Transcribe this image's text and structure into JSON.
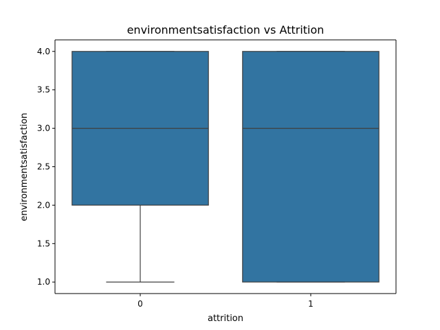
{
  "chart_data": {
    "type": "box",
    "title": "environmentsatisfaction vs Attrition",
    "xlabel": "attrition",
    "ylabel": "environmentsatisfaction",
    "categories": [
      "0",
      "1"
    ],
    "boxes": [
      {
        "category": "0",
        "whisker_low": 1.0,
        "q1": 2.0,
        "median": 3.0,
        "q3": 4.0,
        "whisker_high": 4.0
      },
      {
        "category": "1",
        "whisker_low": 1.0,
        "q1": 1.0,
        "median": 3.0,
        "q3": 4.0,
        "whisker_high": 4.0
      }
    ],
    "ylim": [
      0.85,
      4.15
    ],
    "yticks": [
      1.0,
      1.5,
      2.0,
      2.5,
      3.0,
      3.5,
      4.0
    ],
    "ytick_labels": [
      "1.0",
      "1.5",
      "2.0",
      "2.5",
      "3.0",
      "3.5",
      "4.0"
    ],
    "grid": false,
    "colors": {
      "box_fill": "#3274a1",
      "line": "#3f3f3f",
      "axis": "#000000"
    }
  }
}
